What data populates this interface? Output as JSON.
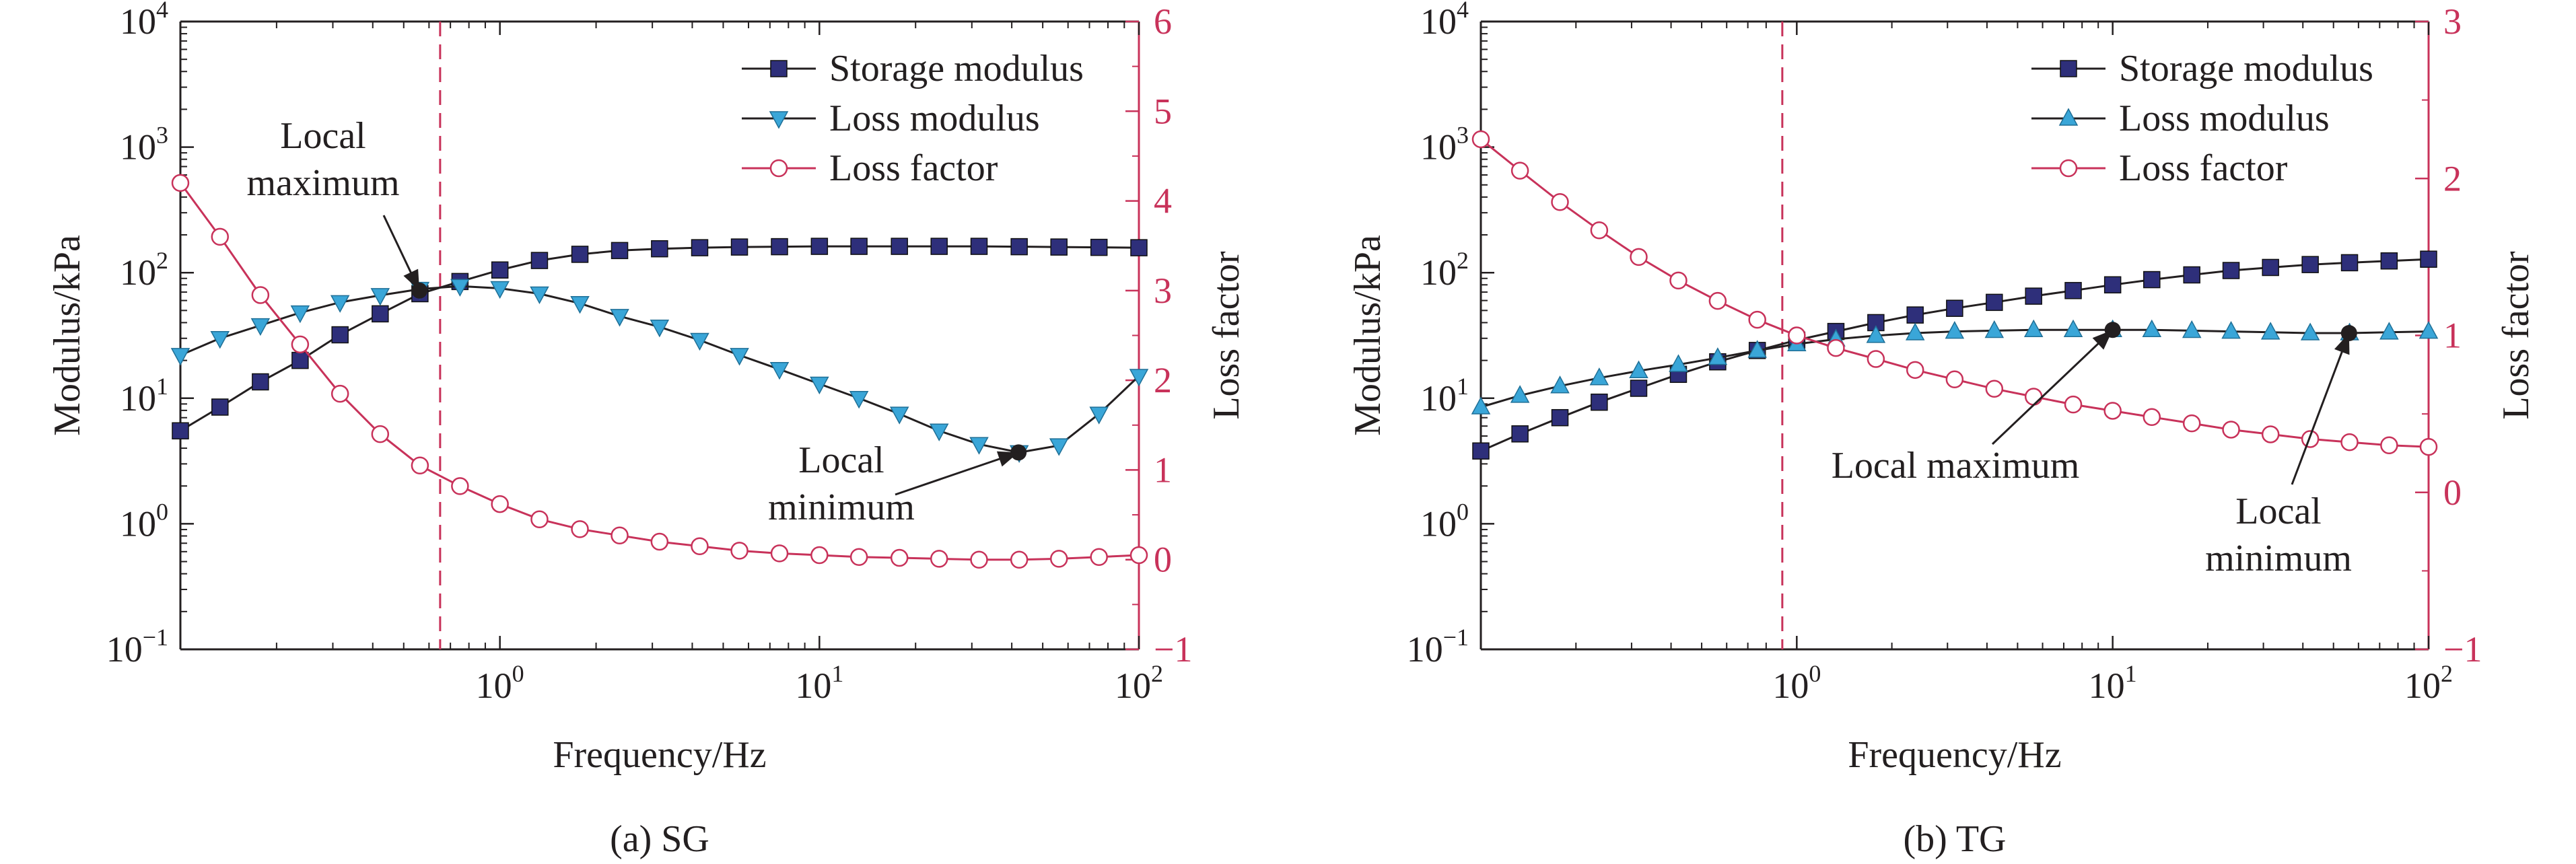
{
  "colors": {
    "storage": "#2e2f7a",
    "loss_modulus": "#3aa6d8",
    "loss_factor": "#c8325a",
    "axis": "#231f20",
    "right_axis": "#c8325a",
    "dashed": "#c8325a"
  },
  "chart_data": [
    {
      "type": "line",
      "caption": "(a) SG",
      "xlabel": "Frequency/Hz",
      "ylabel": "Modulus/kPa",
      "y2label": "Loss factor",
      "x_scale": "log",
      "y_scale": "log",
      "xlim": [
        0.1,
        100
      ],
      "ylim": [
        0.1,
        10000
      ],
      "y2lim": [
        -1,
        6
      ],
      "x_ticks": [
        {
          "base": "10",
          "exp": "0",
          "value": 1
        },
        {
          "base": "10",
          "exp": "1",
          "value": 10
        },
        {
          "base": "10",
          "exp": "2",
          "value": 100
        }
      ],
      "y_ticks": [
        {
          "base": "10",
          "exp": "−1",
          "value": 0.1
        },
        {
          "base": "10",
          "exp": "0",
          "value": 1
        },
        {
          "base": "10",
          "exp": "1",
          "value": 10
        },
        {
          "base": "10",
          "exp": "2",
          "value": 100
        },
        {
          "base": "10",
          "exp": "3",
          "value": 1000
        },
        {
          "base": "10",
          "exp": "4",
          "value": 10000
        }
      ],
      "y2_ticks": [
        "−1",
        "0",
        "1",
        "2",
        "3",
        "4",
        "5",
        "6"
      ],
      "legend_position": "top-right",
      "grid": false,
      "dashed_vline_x": 0.65,
      "series": [
        {
          "name": "Storage modulus",
          "axis": "left",
          "marker": "square",
          "x": [
            0.1,
            0.133,
            0.178,
            0.237,
            0.316,
            0.422,
            0.562,
            0.75,
            1.0,
            1.33,
            1.78,
            2.37,
            3.16,
            4.22,
            5.62,
            7.5,
            10,
            13.3,
            17.8,
            23.7,
            31.6,
            42.2,
            56.2,
            75,
            100
          ],
          "y": [
            5.5,
            8.5,
            13.5,
            20,
            32,
            47,
            68,
            85,
            105,
            125,
            140,
            150,
            155,
            158,
            160,
            161,
            162,
            162,
            162,
            162,
            162,
            161,
            160,
            159,
            158
          ]
        },
        {
          "name": "Loss modulus",
          "axis": "left",
          "marker": "triangle-down",
          "x": [
            0.1,
            0.133,
            0.178,
            0.237,
            0.316,
            0.422,
            0.562,
            0.75,
            1.0,
            1.33,
            1.78,
            2.37,
            3.16,
            4.22,
            5.62,
            7.5,
            10,
            13.3,
            17.8,
            23.7,
            31.6,
            42.2,
            56.2,
            75,
            100
          ],
          "y": [
            22,
            30,
            38,
            48,
            58,
            66,
            74,
            78,
            75,
            68,
            57,
            45,
            37,
            29,
            22,
            17,
            13,
            10,
            7.5,
            5.5,
            4.3,
            3.7,
            4.2,
            7.5,
            15
          ]
        },
        {
          "name": "Loss factor",
          "axis": "right",
          "marker": "circle-open",
          "x": [
            0.1,
            0.133,
            0.178,
            0.237,
            0.316,
            0.422,
            0.562,
            0.75,
            1.0,
            1.33,
            1.78,
            2.37,
            3.16,
            4.22,
            5.62,
            7.5,
            10,
            13.3,
            17.8,
            23.7,
            31.6,
            42.2,
            56.2,
            75,
            100
          ],
          "y": [
            4.2,
            3.6,
            2.95,
            2.4,
            1.85,
            1.4,
            1.05,
            0.82,
            0.62,
            0.45,
            0.34,
            0.27,
            0.2,
            0.15,
            0.1,
            0.07,
            0.05,
            0.03,
            0.02,
            0.01,
            0.0,
            0.0,
            0.01,
            0.03,
            0.05
          ]
        }
      ],
      "annotations": [
        {
          "lines": [
            "Local",
            "maximum"
          ],
          "point_x": 0.56,
          "point_y": 72
        },
        {
          "lines": [
            "Local",
            "minimum"
          ],
          "point_x": 42,
          "point_y": 3.7
        }
      ]
    },
    {
      "type": "line",
      "caption": "(b) TG",
      "xlabel": "Frequency/Hz",
      "ylabel": "Modulus/kPa",
      "y2label": "Loss factor",
      "x_scale": "log",
      "y_scale": "log",
      "xlim": [
        0.1,
        100
      ],
      "ylim": [
        0.1,
        10000
      ],
      "y2lim": [
        -1,
        3
      ],
      "x_ticks": [
        {
          "base": "10",
          "exp": "0",
          "value": 1
        },
        {
          "base": "10",
          "exp": "1",
          "value": 10
        },
        {
          "base": "10",
          "exp": "2",
          "value": 100
        }
      ],
      "y_ticks": [
        {
          "base": "10",
          "exp": "−1",
          "value": 0.1
        },
        {
          "base": "10",
          "exp": "0",
          "value": 1
        },
        {
          "base": "10",
          "exp": "1",
          "value": 10
        },
        {
          "base": "10",
          "exp": "2",
          "value": 100
        },
        {
          "base": "10",
          "exp": "3",
          "value": 1000
        },
        {
          "base": "10",
          "exp": "4",
          "value": 10000
        }
      ],
      "y2_ticks": [
        "−1",
        "0",
        "1",
        "2",
        "3"
      ],
      "legend_position": "top-right",
      "grid": false,
      "dashed_vline_x": 0.9,
      "series": [
        {
          "name": "Storage modulus",
          "axis": "left",
          "marker": "square",
          "x": [
            0.1,
            0.133,
            0.178,
            0.237,
            0.316,
            0.422,
            0.562,
            0.75,
            1.0,
            1.33,
            1.78,
            2.37,
            3.16,
            4.22,
            5.62,
            7.5,
            10,
            13.3,
            17.8,
            23.7,
            31.6,
            42.2,
            56.2,
            75,
            100
          ],
          "y": [
            3.8,
            5.2,
            7.0,
            9.3,
            12,
            15.5,
            19.5,
            24,
            29,
            34,
            40,
            46,
            52,
            58,
            65,
            72,
            80,
            88,
            96,
            104,
            110,
            116,
            120,
            124,
            128
          ]
        },
        {
          "name": "Loss modulus",
          "axis": "left",
          "marker": "triangle-up",
          "x": [
            0.1,
            0.133,
            0.178,
            0.237,
            0.316,
            0.422,
            0.562,
            0.75,
            1.0,
            1.33,
            1.78,
            2.37,
            3.16,
            4.22,
            5.62,
            7.5,
            10,
            13.3,
            17.8,
            23.7,
            31.6,
            42.2,
            56.2,
            75,
            100
          ],
          "y": [
            8.5,
            10.5,
            12.5,
            14.5,
            16.5,
            18.5,
            21,
            24,
            27,
            29.5,
            31.5,
            33,
            34,
            34.5,
            35,
            35,
            35,
            35,
            34.5,
            34,
            33.5,
            33,
            33,
            33.5,
            34
          ]
        },
        {
          "name": "Loss factor",
          "axis": "right",
          "marker": "circle-open",
          "x": [
            0.1,
            0.133,
            0.178,
            0.237,
            0.316,
            0.422,
            0.562,
            0.75,
            1.0,
            1.33,
            1.78,
            2.37,
            3.16,
            4.22,
            5.62,
            7.5,
            10,
            13.3,
            17.8,
            23.7,
            31.6,
            42.2,
            56.2,
            75,
            100
          ],
          "y": [
            2.25,
            2.05,
            1.85,
            1.67,
            1.5,
            1.35,
            1.22,
            1.1,
            1.0,
            0.92,
            0.85,
            0.78,
            0.72,
            0.66,
            0.61,
            0.56,
            0.52,
            0.48,
            0.44,
            0.4,
            0.37,
            0.34,
            0.32,
            0.3,
            0.29
          ]
        }
      ],
      "annotations": [
        {
          "lines": [
            "Local maximum"
          ],
          "point_x": 10,
          "point_y": 35
        },
        {
          "lines": [
            "Local",
            "minimum"
          ],
          "point_x": 56,
          "point_y": 33
        }
      ]
    }
  ]
}
